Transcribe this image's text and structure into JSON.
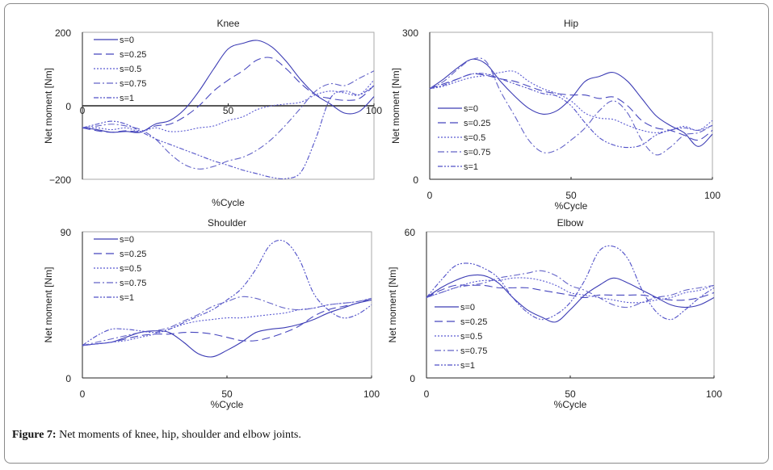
{
  "chart_data": [
    {
      "type": "line",
      "title": "Knee",
      "xlabel": "%Cycle",
      "ylabel": "Net moment [Nm]",
      "xlim": [
        0,
        100
      ],
      "ylim": [
        -200,
        200
      ],
      "xticks": [
        "0",
        "50",
        "100"
      ],
      "yticks": [
        "-200",
        "0",
        "200"
      ],
      "zero_line": true,
      "grid": false,
      "legend": "top-left",
      "x": [
        0,
        5,
        10,
        15,
        20,
        25,
        30,
        35,
        40,
        45,
        50,
        55,
        60,
        65,
        70,
        75,
        80,
        85,
        90,
        95,
        100
      ],
      "series": [
        {
          "name": "s=0",
          "values": [
            -60,
            -65,
            -72,
            -70,
            -72,
            -50,
            -40,
            -10,
            40,
            100,
            155,
            170,
            178,
            160,
            120,
            70,
            30,
            5,
            -20,
            -15,
            25
          ]
        },
        {
          "name": "s=0.25",
          "values": [
            -60,
            -68,
            -72,
            -68,
            -70,
            -55,
            -50,
            -30,
            0,
            40,
            70,
            95,
            125,
            130,
            100,
            60,
            30,
            20,
            15,
            20,
            55
          ]
        },
        {
          "name": "s=0.5",
          "values": [
            -60,
            -60,
            -65,
            -60,
            -70,
            -60,
            -70,
            -68,
            -60,
            -55,
            -40,
            -30,
            -10,
            0,
            5,
            10,
            30,
            40,
            35,
            30,
            70
          ]
        },
        {
          "name": "s=0.75",
          "values": [
            -60,
            -55,
            -50,
            -55,
            -65,
            -90,
            -130,
            -160,
            -172,
            -165,
            -150,
            -140,
            -120,
            -90,
            -50,
            -5,
            40,
            60,
            55,
            75,
            95
          ]
        },
        {
          "name": "s=1",
          "values": [
            -60,
            -50,
            -42,
            -50,
            -70,
            -90,
            -105,
            -120,
            -135,
            -150,
            -162,
            -175,
            -185,
            -195,
            -198,
            -180,
            -90,
            20,
            40,
            30,
            55
          ]
        }
      ]
    },
    {
      "type": "line",
      "title": "Hip",
      "xlabel": "%Cycle",
      "ylabel": "Net moment [Nm]",
      "xlim": [
        0,
        100
      ],
      "ylim": [
        0,
        300
      ],
      "xticks": [
        "0",
        "50",
        "100"
      ],
      "yticks": [
        "0",
        "300"
      ],
      "grid": false,
      "legend": "bottom-left",
      "x": [
        0,
        5,
        10,
        15,
        20,
        25,
        30,
        35,
        40,
        45,
        50,
        55,
        60,
        65,
        70,
        75,
        80,
        85,
        90,
        95,
        100
      ],
      "series": [
        {
          "name": "s=0",
          "values": [
            185,
            205,
            228,
            245,
            235,
            200,
            170,
            145,
            133,
            140,
            165,
            200,
            210,
            218,
            200,
            165,
            130,
            110,
            95,
            67,
            92
          ]
        },
        {
          "name": "s=0.25",
          "values": [
            185,
            195,
            205,
            215,
            212,
            205,
            200,
            190,
            180,
            175,
            172,
            172,
            165,
            168,
            150,
            120,
            105,
            100,
            90,
            80,
            100
          ]
        },
        {
          "name": "s=0.5",
          "values": [
            185,
            190,
            200,
            208,
            212,
            218,
            220,
            200,
            185,
            175,
            160,
            135,
            125,
            122,
            110,
            100,
            95,
            100,
            108,
            100,
            120
          ]
        },
        {
          "name": "s=0.75",
          "values": [
            185,
            200,
            225,
            245,
            240,
            180,
            130,
            80,
            55,
            60,
            80,
            105,
            140,
            160,
            135,
            80,
            50,
            65,
            90,
            95,
            110
          ]
        },
        {
          "name": "s=1",
          "values": [
            185,
            192,
            205,
            215,
            215,
            205,
            195,
            185,
            175,
            170,
            150,
            115,
            85,
            70,
            65,
            70,
            90,
            100,
            105,
            100,
            110
          ]
        }
      ]
    },
    {
      "type": "line",
      "title": "Shoulder",
      "xlabel": "%Cycle",
      "ylabel": "Net moment [Nm]",
      "xlim": [
        0,
        100
      ],
      "ylim": [
        0,
        90
      ],
      "xticks": [
        "0",
        "50",
        "100"
      ],
      "yticks": [
        "0",
        "90"
      ],
      "grid": false,
      "legend": "top-left",
      "x": [
        0,
        5,
        10,
        15,
        20,
        25,
        30,
        35,
        40,
        45,
        50,
        55,
        60,
        65,
        70,
        75,
        80,
        85,
        90,
        95,
        100
      ],
      "series": [
        {
          "name": "s=0",
          "values": [
            20,
            21,
            22,
            25,
            28,
            29,
            28,
            22,
            15,
            13,
            17,
            22,
            28,
            30,
            31,
            33,
            36,
            40,
            43,
            46,
            48
          ]
        },
        {
          "name": "s=0.25",
          "values": [
            20,
            21,
            22,
            24,
            26,
            27,
            27,
            28,
            28,
            27,
            25,
            23,
            23,
            25,
            28,
            32,
            38,
            42,
            44,
            46,
            49
          ]
        },
        {
          "name": "s=0.5",
          "values": [
            20,
            21,
            22,
            23,
            25,
            27,
            30,
            33,
            35,
            36,
            37,
            37,
            38,
            39,
            40,
            42,
            43,
            45,
            46,
            47,
            49
          ]
        },
        {
          "name": "s=0.75",
          "values": [
            20,
            22,
            24,
            26,
            28,
            29,
            31,
            35,
            39,
            44,
            47,
            50,
            49,
            46,
            43,
            42,
            43,
            45,
            46,
            47,
            49
          ]
        },
        {
          "name": "s=1",
          "values": [
            20,
            26,
            30,
            30,
            29,
            28,
            30,
            34,
            38,
            42,
            48,
            55,
            67,
            82,
            84,
            73,
            52,
            42,
            37,
            39,
            45
          ]
        }
      ]
    },
    {
      "type": "line",
      "title": "Elbow",
      "xlabel": "%Cycle",
      "ylabel": "Net moment [Nm]",
      "xlim": [
        0,
        100
      ],
      "ylim": [
        0,
        60
      ],
      "xticks": [
        "0",
        "50",
        "100"
      ],
      "yticks": [
        "0",
        "60"
      ],
      "grid": false,
      "legend": "bottom-left",
      "x": [
        0,
        5,
        10,
        15,
        20,
        25,
        30,
        35,
        40,
        45,
        50,
        55,
        60,
        65,
        70,
        75,
        80,
        85,
        90,
        95,
        100
      ],
      "series": [
        {
          "name": "s=0",
          "values": [
            33,
            37,
            40,
            42,
            42,
            39,
            33,
            28,
            25,
            23,
            28,
            34,
            38,
            41,
            39,
            36,
            33,
            30,
            29,
            30,
            33
          ]
        },
        {
          "name": "s=0.25",
          "values": [
            33,
            36,
            38,
            38,
            38,
            37,
            37,
            37,
            36,
            35,
            34,
            33,
            34,
            34,
            34,
            34,
            33,
            32,
            32,
            33,
            35
          ]
        },
        {
          "name": "s=0.5",
          "values": [
            33,
            35,
            37,
            39,
            40,
            40,
            41,
            41,
            40,
            38,
            35,
            34,
            33,
            32,
            31,
            31,
            32,
            33,
            35,
            36,
            38
          ]
        },
        {
          "name": "s=0.75",
          "values": [
            33,
            35,
            37,
            38,
            39,
            41,
            42,
            43,
            44,
            42,
            38,
            36,
            33,
            30,
            29,
            31,
            33,
            34,
            36,
            37,
            38
          ]
        },
        {
          "name": "s=1",
          "values": [
            33,
            40,
            46,
            47,
            45,
            41,
            33,
            27,
            24,
            26,
            31,
            40,
            52,
            54,
            49,
            36,
            27,
            24,
            28,
            33,
            37
          ]
        }
      ]
    }
  ],
  "colors": {
    "series": [
      "#3c3cb4",
      "#4646be",
      "#5a5ad2",
      "#6464c8",
      "#5050c8"
    ],
    "frame": "#8a8a8a"
  },
  "caption": {
    "label": "Figure 7:",
    "text": " Net moments of knee, hip, shoulder and elbow joints."
  }
}
